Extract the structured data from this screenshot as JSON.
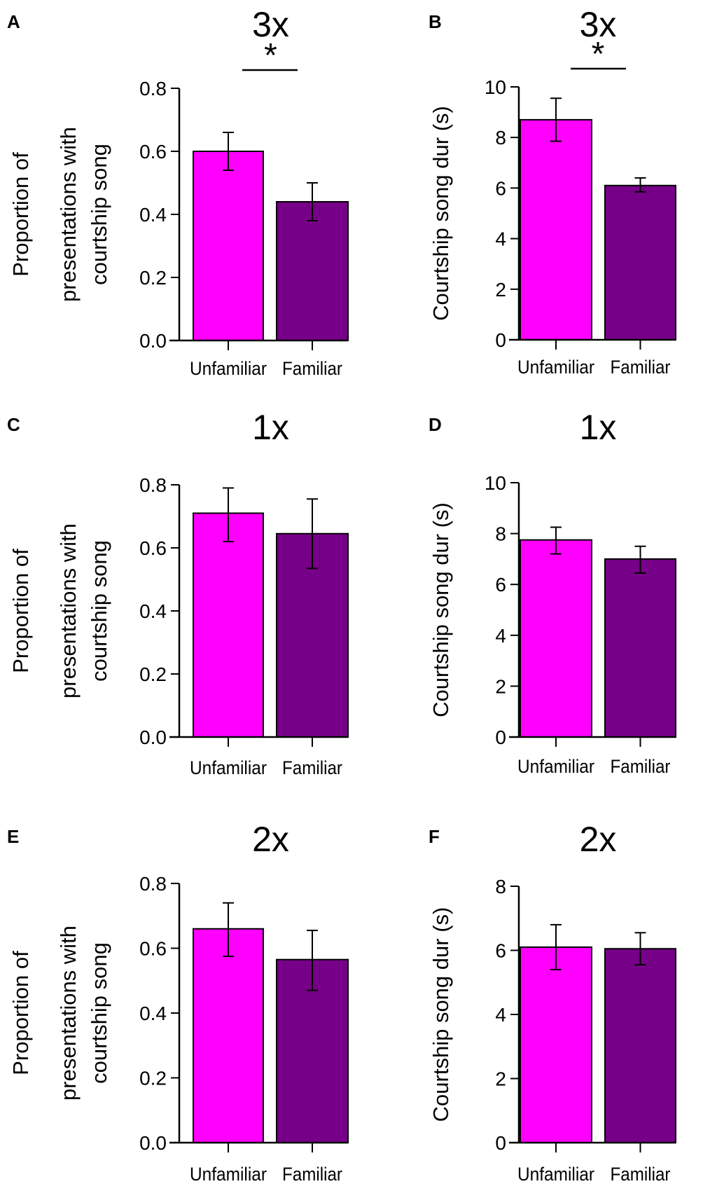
{
  "colors": {
    "unfamiliar": "#ff00ff",
    "familiar": "#770088",
    "axis": "#000000"
  },
  "chart_data": [
    {
      "panel": "A",
      "type": "bar",
      "title": "3x",
      "ylabel": [
        "Proportion of",
        "presentations with",
        "courtship song"
      ],
      "categories": [
        "Unfamiliar",
        "Familiar"
      ],
      "values": [
        0.6,
        0.44
      ],
      "error": [
        [
          0.54,
          0.66
        ],
        [
          0.38,
          0.5
        ]
      ],
      "ylim": [
        0,
        0.8
      ],
      "yticks": [
        "0.0",
        "0.2",
        "0.4",
        "0.6",
        "0.8"
      ],
      "significance": "*"
    },
    {
      "panel": "B",
      "type": "bar",
      "title": "3x",
      "ylabel": [
        "Courtship song dur (s)"
      ],
      "categories": [
        "Unfamiliar",
        "Familiar"
      ],
      "values": [
        8.7,
        6.1
      ],
      "error": [
        [
          7.85,
          9.55
        ],
        [
          5.85,
          6.4
        ]
      ],
      "ylim": [
        0,
        10
      ],
      "yticks": [
        "0",
        "2",
        "4",
        "6",
        "8",
        "10"
      ],
      "significance": "*"
    },
    {
      "panel": "C",
      "type": "bar",
      "title": "1x",
      "ylabel": [
        "Proportion of",
        "presentations with",
        "courtship song"
      ],
      "categories": [
        "Unfamiliar",
        "Familiar"
      ],
      "values": [
        0.71,
        0.645
      ],
      "error": [
        [
          0.62,
          0.79
        ],
        [
          0.535,
          0.755
        ]
      ],
      "ylim": [
        0,
        0.8
      ],
      "yticks": [
        "0.0",
        "0.2",
        "0.4",
        "0.6",
        "0.8"
      ],
      "significance": ""
    },
    {
      "panel": "D",
      "type": "bar",
      "title": "1x",
      "ylabel": [
        "Courtship song dur (s)"
      ],
      "categories": [
        "Unfamiliar",
        "Familiar"
      ],
      "values": [
        7.75,
        7.0
      ],
      "error": [
        [
          7.2,
          8.25
        ],
        [
          6.45,
          7.5
        ]
      ],
      "ylim": [
        0,
        10
      ],
      "yticks": [
        "0",
        "2",
        "4",
        "6",
        "8",
        "10"
      ],
      "significance": ""
    },
    {
      "panel": "E",
      "type": "bar",
      "title": "2x",
      "ylabel": [
        "Proportion of",
        "presentations with",
        "courtship song"
      ],
      "categories": [
        "Unfamiliar",
        "Familiar"
      ],
      "values": [
        0.66,
        0.565
      ],
      "error": [
        [
          0.575,
          0.74
        ],
        [
          0.47,
          0.655
        ]
      ],
      "ylim": [
        0,
        0.8
      ],
      "yticks": [
        "0.0",
        "0.2",
        "0.4",
        "0.6",
        "0.8"
      ],
      "significance": ""
    },
    {
      "panel": "F",
      "type": "bar",
      "title": "2x",
      "ylabel": [
        "Courtship song dur (s)"
      ],
      "categories": [
        "Unfamiliar",
        "Familiar"
      ],
      "values": [
        6.1,
        6.05
      ],
      "error": [
        [
          5.4,
          6.8
        ],
        [
          5.55,
          6.55
        ]
      ],
      "ylim": [
        0,
        8
      ],
      "yticks": [
        "0",
        "2",
        "4",
        "6",
        "8"
      ],
      "significance": ""
    }
  ]
}
